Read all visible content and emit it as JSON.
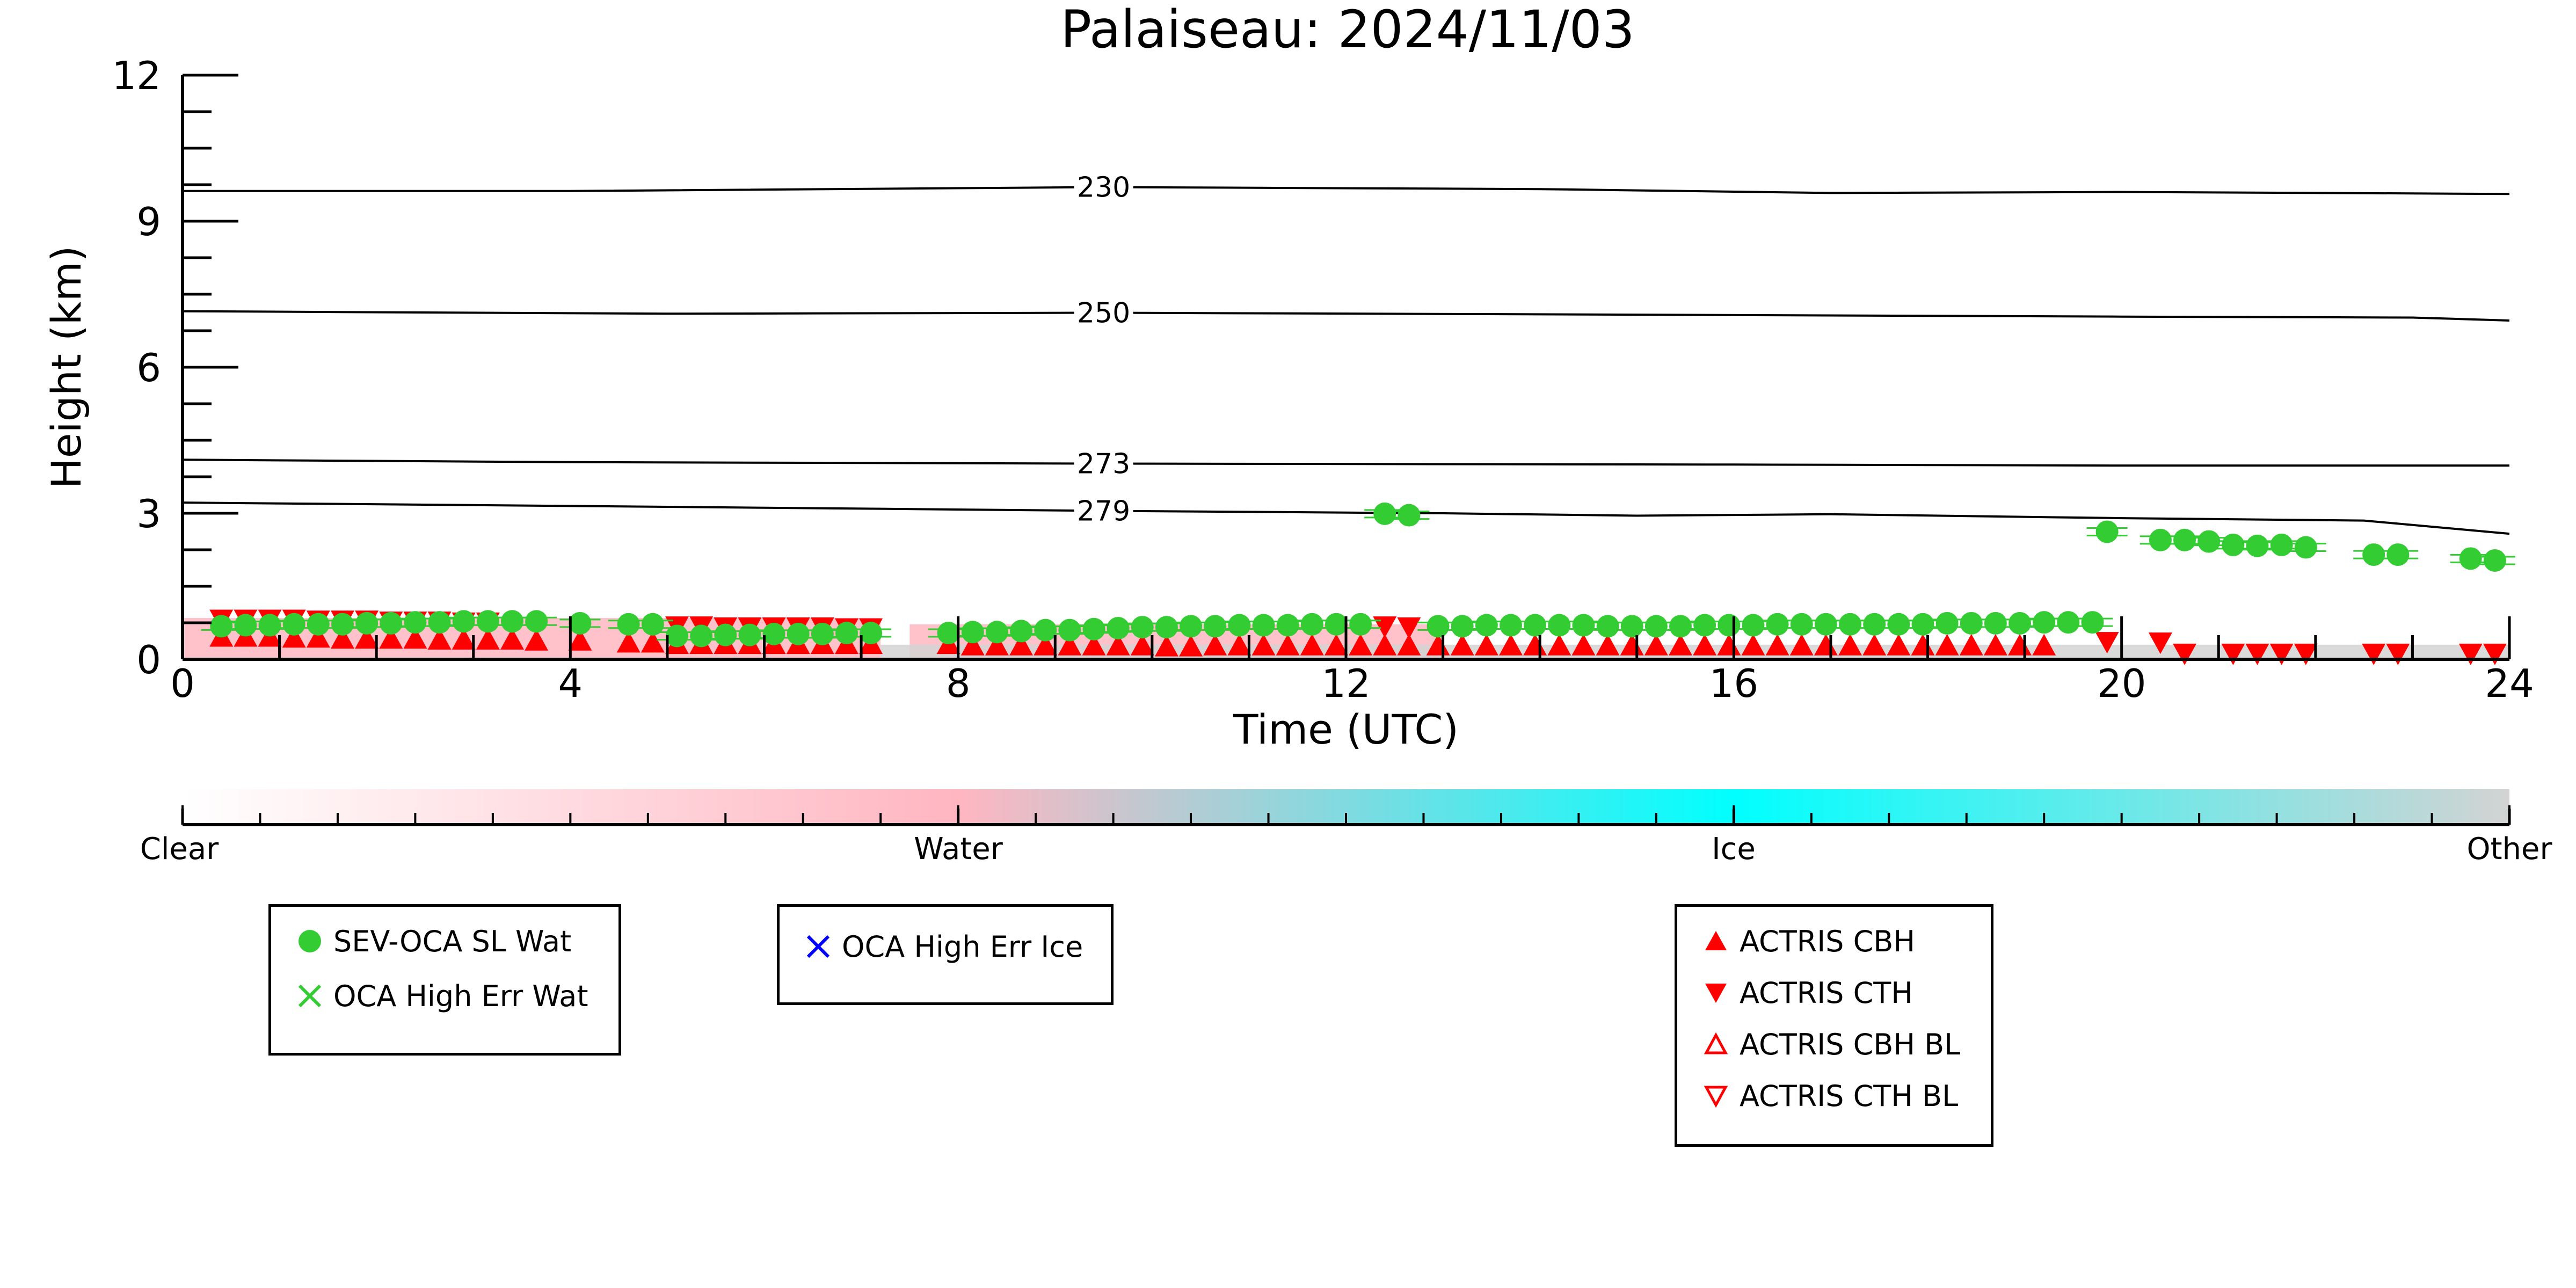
{
  "chart_data": {
    "type": "scatter",
    "title": "Palaiseau: 2024/11/03",
    "xlabel": "Time (UTC)",
    "ylabel": "Height (km)",
    "xlim": [
      0,
      24
    ],
    "ylim": [
      0,
      12
    ],
    "xticks": [
      "0",
      "4",
      "8",
      "12",
      "16",
      "20",
      "24"
    ],
    "yticks": [
      "0",
      "3",
      "6",
      "9",
      "12"
    ],
    "grid": false,
    "contours": [
      {
        "label": "230",
        "label_x": 9.5,
        "points": [
          [
            0,
            9.62
          ],
          [
            4,
            9.62
          ],
          [
            9.5,
            9.7
          ],
          [
            14,
            9.66
          ],
          [
            17,
            9.58
          ],
          [
            20,
            9.6
          ],
          [
            24,
            9.56
          ]
        ]
      },
      {
        "label": "250",
        "label_x": 9.5,
        "points": [
          [
            0,
            7.15
          ],
          [
            5,
            7.1
          ],
          [
            9.5,
            7.12
          ],
          [
            15,
            7.08
          ],
          [
            20,
            7.04
          ],
          [
            23,
            7.02
          ],
          [
            24,
            6.96
          ]
        ]
      },
      {
        "label": "273",
        "label_x": 9.5,
        "points": [
          [
            0,
            4.1
          ],
          [
            4,
            4.05
          ],
          [
            9.5,
            4.02
          ],
          [
            16,
            4.0
          ],
          [
            20,
            3.98
          ],
          [
            24,
            3.98
          ]
        ]
      },
      {
        "label": "279",
        "label_x": 9.5,
        "points": [
          [
            0,
            3.22
          ],
          [
            4,
            3.15
          ],
          [
            9.5,
            3.05
          ],
          [
            13,
            3.0
          ],
          [
            15,
            2.95
          ],
          [
            17,
            2.98
          ],
          [
            20,
            2.9
          ],
          [
            22.5,
            2.85
          ],
          [
            24,
            2.58
          ]
        ]
      }
    ],
    "series": [
      {
        "name": "SEV-OCA SL Wat",
        "x": [
          0.4,
          0.65,
          0.9,
          1.15,
          1.4,
          1.65,
          1.9,
          2.15,
          2.4,
          2.65,
          2.9,
          3.15,
          3.4,
          3.65,
          4.1,
          4.6,
          4.85,
          5.1,
          5.35,
          5.6,
          5.85,
          6.1,
          6.35,
          6.6,
          6.85,
          7.1,
          7.9,
          8.15,
          8.4,
          8.65,
          8.9,
          9.15,
          9.4,
          9.65,
          9.9,
          10.15,
          10.4,
          10.65,
          10.9,
          11.15,
          11.4,
          11.65,
          11.9,
          12.15,
          12.4,
          12.65,
          12.95,
          13.2,
          13.45,
          13.7,
          13.95,
          14.2,
          14.45,
          14.7,
          14.95,
          15.2,
          15.45,
          15.7,
          15.95,
          16.2,
          16.45,
          16.7,
          16.95,
          17.2,
          17.45,
          17.7,
          17.95,
          18.2,
          18.45,
          18.7,
          18.95,
          19.2,
          19.45,
          19.7,
          19.85,
          20.4,
          20.65,
          20.9,
          21.15,
          21.4,
          21.65,
          21.9,
          22.6,
          22.85,
          23.6,
          23.85
        ],
        "y": [
          0.68,
          0.7,
          0.7,
          0.72,
          0.72,
          0.72,
          0.74,
          0.74,
          0.76,
          0.76,
          0.78,
          0.78,
          0.78,
          0.78,
          0.74,
          0.72,
          0.72,
          0.48,
          0.48,
          0.5,
          0.5,
          0.52,
          0.52,
          0.52,
          0.54,
          0.54,
          0.54,
          0.56,
          0.56,
          0.58,
          0.6,
          0.6,
          0.62,
          0.64,
          0.66,
          0.66,
          0.68,
          0.68,
          0.7,
          0.7,
          0.7,
          0.72,
          0.72,
          0.72,
          2.99,
          2.96,
          0.68,
          0.68,
          0.7,
          0.7,
          0.7,
          0.7,
          0.7,
          0.68,
          0.68,
          0.68,
          0.68,
          0.7,
          0.7,
          0.7,
          0.72,
          0.72,
          0.72,
          0.72,
          0.72,
          0.72,
          0.72,
          0.74,
          0.74,
          0.74,
          0.74,
          0.76,
          0.76,
          0.76,
          2.62,
          2.45,
          2.45,
          2.42,
          2.35,
          2.33,
          2.35,
          2.3,
          2.15,
          2.15,
          2.07,
          2.03
        ],
        "color": "#33cc33",
        "marker": "circle"
      },
      {
        "name": "OCA High Err Wat",
        "x": [],
        "y": [],
        "color": "#33cc33",
        "marker": "x"
      },
      {
        "name": "OCA High Err Ice",
        "x": [],
        "y": [],
        "color": "#0000ff",
        "marker": "x"
      },
      {
        "name": "ACTRIS CBH",
        "x": [
          0.4,
          0.65,
          0.9,
          1.15,
          1.4,
          1.65,
          1.9,
          2.15,
          2.4,
          2.65,
          2.9,
          3.15,
          3.4,
          3.65,
          4.1,
          4.6,
          4.85,
          5.1,
          5.35,
          5.6,
          5.85,
          6.1,
          6.35,
          6.6,
          6.85,
          7.1,
          7.9,
          8.15,
          8.4,
          8.65,
          8.9,
          9.15,
          9.4,
          9.65,
          9.9,
          10.15,
          10.4,
          10.65,
          10.9,
          11.15,
          11.4,
          11.65,
          11.9,
          12.15,
          12.4,
          12.65,
          12.95,
          13.2,
          13.45,
          13.7,
          13.95,
          14.2,
          14.45,
          14.7,
          14.95,
          15.2,
          15.45,
          15.7,
          15.95,
          16.2,
          16.45,
          16.7,
          16.95,
          17.2,
          17.45,
          17.7,
          17.95,
          18.2,
          18.45,
          18.7,
          18.95,
          19.2
        ],
        "y": [
          0.48,
          0.48,
          0.48,
          0.46,
          0.46,
          0.44,
          0.44,
          0.44,
          0.44,
          0.42,
          0.42,
          0.42,
          0.42,
          0.4,
          0.4,
          0.36,
          0.36,
          0.33,
          0.33,
          0.33,
          0.33,
          0.33,
          0.33,
          0.33,
          0.33,
          0.33,
          0.33,
          0.3,
          0.3,
          0.3,
          0.3,
          0.3,
          0.3,
          0.3,
          0.3,
          0.28,
          0.28,
          0.3,
          0.3,
          0.3,
          0.3,
          0.3,
          0.3,
          0.3,
          0.3,
          0.3,
          0.3,
          0.3,
          0.3,
          0.3,
          0.3,
          0.3,
          0.3,
          0.3,
          0.3,
          0.3,
          0.3,
          0.3,
          0.3,
          0.3,
          0.3,
          0.3,
          0.3,
          0.3,
          0.3,
          0.3,
          0.3,
          0.3,
          0.3,
          0.3,
          0.3,
          0.3
        ],
        "color": "#ff0000",
        "marker": "triangle-up"
      },
      {
        "name": "ACTRIS CTH",
        "x": [
          0.4,
          0.65,
          0.9,
          1.15,
          1.4,
          1.65,
          1.9,
          2.15,
          2.4,
          2.65,
          2.9,
          3.15,
          5.1,
          5.35,
          5.6,
          5.85,
          6.1,
          6.35,
          6.6,
          6.85,
          7.1,
          12.4,
          12.65,
          19.85,
          20.4,
          20.65,
          21.15,
          21.4,
          21.65,
          21.9,
          22.6,
          22.85,
          23.6,
          23.85
        ],
        "y": [
          0.8,
          0.8,
          0.8,
          0.8,
          0.78,
          0.78,
          0.78,
          0.76,
          0.76,
          0.76,
          0.74,
          0.74,
          0.66,
          0.66,
          0.64,
          0.64,
          0.64,
          0.64,
          0.64,
          0.62,
          0.62,
          0.66,
          0.64,
          0.34,
          0.33,
          0.1,
          0.1,
          0.1,
          0.1,
          0.1,
          0.1,
          0.1,
          0.1,
          0.1
        ],
        "color": "#ff0000",
        "marker": "triangle-down"
      },
      {
        "name": "ACTRIS CBH BL",
        "x": [],
        "y": [],
        "color": "#ff0000",
        "marker": "triangle-up-open"
      },
      {
        "name": "ACTRIS CTH BL",
        "x": [],
        "y": [],
        "color": "#ff0000",
        "marker": "triangle-down-open"
      }
    ],
    "background_bands": [
      {
        "class": "Water",
        "x_start": 0.0,
        "x_end": 7.2,
        "top_km": 0.85
      },
      {
        "class": "Water",
        "x_start": 7.5,
        "x_end": 13.0,
        "top_km": 0.72
      },
      {
        "class": "Other",
        "x_start": 7.2,
        "x_end": 24.0,
        "top_km": 0.3
      }
    ],
    "colorbar": {
      "labels": [
        "Clear",
        "Water",
        "Ice",
        "Other"
      ],
      "colors": [
        "#ffffff",
        "#ffb6c1",
        "#00ffff",
        "#d3d3d3"
      ]
    },
    "legends": [
      {
        "entries": [
          "SEV-OCA SL Wat",
          "OCA High Err Wat"
        ]
      },
      {
        "entries": [
          "OCA High Err Ice"
        ]
      },
      {
        "entries": [
          "ACTRIS CBH",
          "ACTRIS CTH",
          "ACTRIS CBH BL",
          "ACTRIS CTH BL"
        ]
      }
    ]
  }
}
